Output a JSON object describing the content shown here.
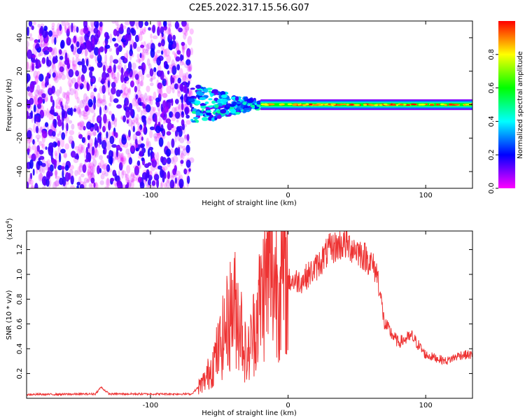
{
  "title": "C2E5.2022.317.15.56.G07",
  "chart_data": [
    {
      "type": "heatmap",
      "xlabel": "Height of straight line (km)",
      "ylabel": "Frequency (Hz)",
      "xlim": [
        -190,
        134
      ],
      "ylim": [
        -50,
        50
      ],
      "xticks": [
        -100,
        0,
        100
      ],
      "yticks": [
        -40,
        -20,
        0,
        20,
        40
      ],
      "colorbar": {
        "label": "Normalized spectral amplitude",
        "range": [
          0,
          1
        ],
        "ticks": [
          0.0,
          0.2,
          0.4,
          0.6,
          0.8
        ],
        "colors": [
          "#ff00ff",
          "#0000ff",
          "#00ffff",
          "#00ff00",
          "#ffff00",
          "#ff0000"
        ]
      },
      "regions": [
        {
          "x": [
            -190,
            -70
          ],
          "freq": [
            -50,
            50
          ],
          "amplitude": [
            0.0,
            0.2
          ],
          "pattern": "scattered noise"
        },
        {
          "x": [
            -70,
            -20
          ],
          "freq": [
            -10,
            10
          ],
          "amplitude": [
            0.1,
            0.5
          ],
          "pattern": "clustered blobs"
        },
        {
          "x": [
            -20,
            134
          ],
          "freq": [
            -3,
            3
          ],
          "amplitude": [
            0.3,
            1.0
          ],
          "pattern": "narrow band at 0 Hz"
        }
      ]
    },
    {
      "type": "line",
      "xlabel": "Height of straight line (km)",
      "ylabel": "SNR (10 * v/v)",
      "y_scale_note": "(x10",
      "y_scale_exp": "4",
      "xlim": [
        -190,
        134
      ],
      "ylim": [
        0,
        13500
      ],
      "xticks": [
        -100,
        0,
        100
      ],
      "yticks": [
        2000,
        4000,
        6000,
        8000,
        10000,
        12000
      ],
      "ytick_labels": [
        "0.2",
        "0.4",
        "0.6",
        "0.8",
        "1.0",
        "1.2"
      ],
      "color": "#ee3333",
      "envelope": [
        {
          "x": -190,
          "y": 300
        },
        {
          "x": -140,
          "y": 350
        },
        {
          "x": -136,
          "y": 900
        },
        {
          "x": -130,
          "y": 350
        },
        {
          "x": -70,
          "y": 350
        },
        {
          "x": -60,
          "y": 1500
        },
        {
          "x": -50,
          "y": 4000
        },
        {
          "x": -40,
          "y": 7500
        },
        {
          "x": -35,
          "y": 6500
        },
        {
          "x": -30,
          "y": 3000
        },
        {
          "x": -22,
          "y": 7000
        },
        {
          "x": -15,
          "y": 10000
        },
        {
          "x": -5,
          "y": 9500
        },
        {
          "x": 10,
          "y": 9500
        },
        {
          "x": 20,
          "y": 10500
        },
        {
          "x": 30,
          "y": 12000
        },
        {
          "x": 40,
          "y": 12500
        },
        {
          "x": 50,
          "y": 12000
        },
        {
          "x": 60,
          "y": 11000
        },
        {
          "x": 65,
          "y": 10000
        },
        {
          "x": 70,
          "y": 6000
        },
        {
          "x": 80,
          "y": 4500
        },
        {
          "x": 90,
          "y": 5000
        },
        {
          "x": 100,
          "y": 3500
        },
        {
          "x": 115,
          "y": 3000
        },
        {
          "x": 125,
          "y": 3500
        },
        {
          "x": 134,
          "y": 3500
        }
      ]
    }
  ]
}
